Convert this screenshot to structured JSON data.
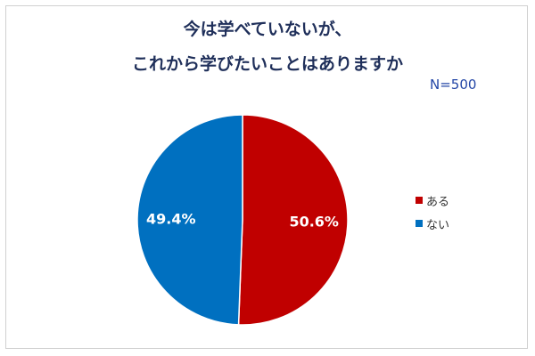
{
  "title_lines": [
    "今は学べていないが、",
    "これから学びたいことはありますか"
  ],
  "sample_size": "N=500",
  "colors": {
    "red": "#c00000",
    "blue": "#0070c0"
  },
  "chart_data": {
    "type": "pie",
    "title": "今は学べていないが、これから学びたいことはありますか",
    "slices": [
      {
        "label": "ある",
        "value": 50.6,
        "display": "50.6%",
        "color": "#c00000"
      },
      {
        "label": "ない",
        "value": 49.4,
        "display": "49.4%",
        "color": "#0070c0"
      }
    ],
    "legend_position": "right"
  }
}
